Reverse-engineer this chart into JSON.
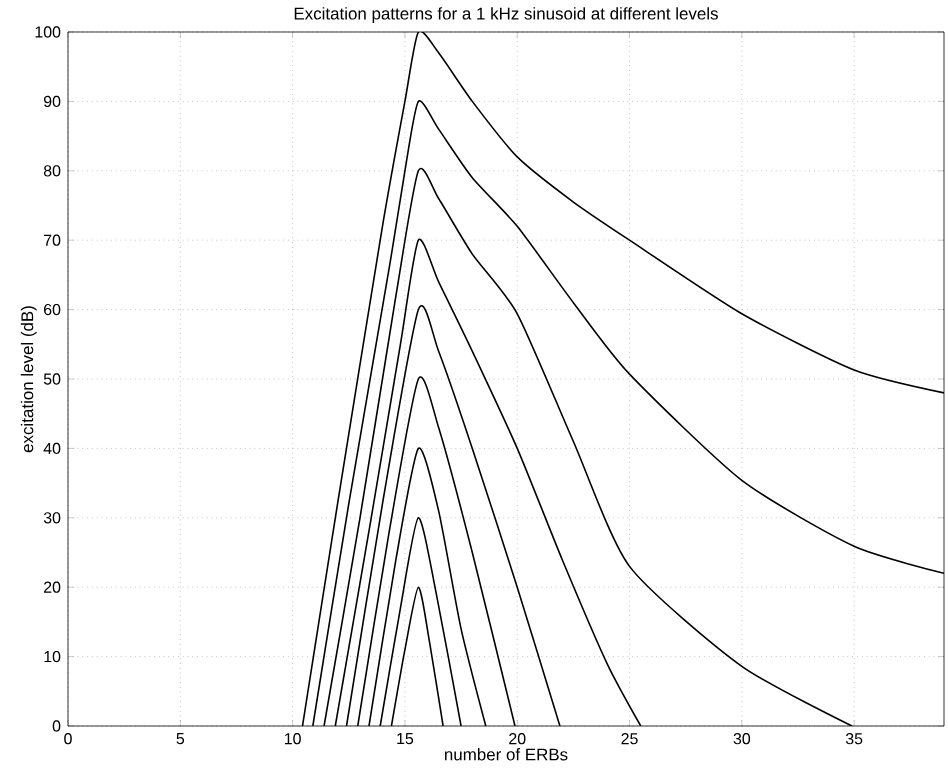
{
  "chart_data": {
    "type": "line",
    "title": "Excitation patterns for a 1 kHz sinusoid at different levels",
    "xlabel": "number of ERBs",
    "ylabel": "excitation level (dB)",
    "xlim": [
      0,
      39
    ],
    "ylim": [
      0,
      100
    ],
    "xticks": [
      0,
      5,
      10,
      15,
      20,
      25,
      30,
      35
    ],
    "yticks": [
      0,
      10,
      20,
      30,
      40,
      50,
      60,
      70,
      80,
      90,
      100
    ],
    "grid": true,
    "line_style": "solid",
    "marker": "none",
    "series": [
      {
        "color": "#000000",
        "x": [
          10.44,
          12,
          14,
          15,
          15.6,
          16.5,
          18,
          20,
          22.5,
          25,
          30,
          35,
          39
        ],
        "values": [
          0,
          32,
          72,
          90,
          100,
          97,
          90,
          82,
          75.5,
          70,
          59.4,
          51.3,
          48
        ]
      },
      {
        "color": "#000000",
        "x": [
          10.9,
          12.5,
          14.3,
          15,
          15.6,
          16.5,
          18,
          20,
          22.5,
          25,
          30,
          35,
          39
        ],
        "values": [
          0,
          32,
          66,
          80,
          90,
          86,
          79,
          72,
          61,
          50.7,
          35.4,
          25.9,
          22
        ]
      },
      {
        "color": "#000000",
        "x": [
          11.4,
          13,
          14.6,
          15.6,
          16.5,
          18,
          20,
          22.5,
          25,
          30,
          34.9
        ],
        "values": [
          0,
          30,
          62,
          80,
          76,
          68,
          59.4,
          41,
          23,
          8.6,
          0
        ]
      },
      {
        "color": "#000000",
        "x": [
          11.9,
          13.5,
          14.8,
          15.6,
          16.5,
          18,
          20,
          22,
          24,
          25.5
        ],
        "values": [
          0,
          30,
          55,
          70,
          64,
          54,
          40,
          24,
          9,
          0
        ]
      },
      {
        "color": "#000000",
        "x": [
          12.4,
          14,
          15.6,
          16.5,
          18,
          20,
          21.9
        ],
        "values": [
          0,
          32,
          60,
          54,
          40,
          20,
          0
        ]
      },
      {
        "color": "#000000",
        "x": [
          12.9,
          14.3,
          15.6,
          16.5,
          18,
          19.9
        ],
        "values": [
          0,
          28,
          50,
          43,
          25,
          0
        ]
      },
      {
        "color": "#000000",
        "x": [
          13.4,
          14.6,
          15.6,
          16.5,
          17.5,
          18.6
        ],
        "values": [
          0,
          24,
          40,
          31,
          14,
          0
        ]
      },
      {
        "color": "#000000",
        "x": [
          13.9,
          14.8,
          15.6,
          16.4,
          17.5
        ],
        "values": [
          0,
          17,
          30,
          19,
          0
        ]
      },
      {
        "color": "#000000",
        "x": [
          14.4,
          15.0,
          15.6,
          16.1,
          16.7
        ],
        "values": [
          0,
          11,
          20,
          12,
          0
        ]
      }
    ]
  }
}
